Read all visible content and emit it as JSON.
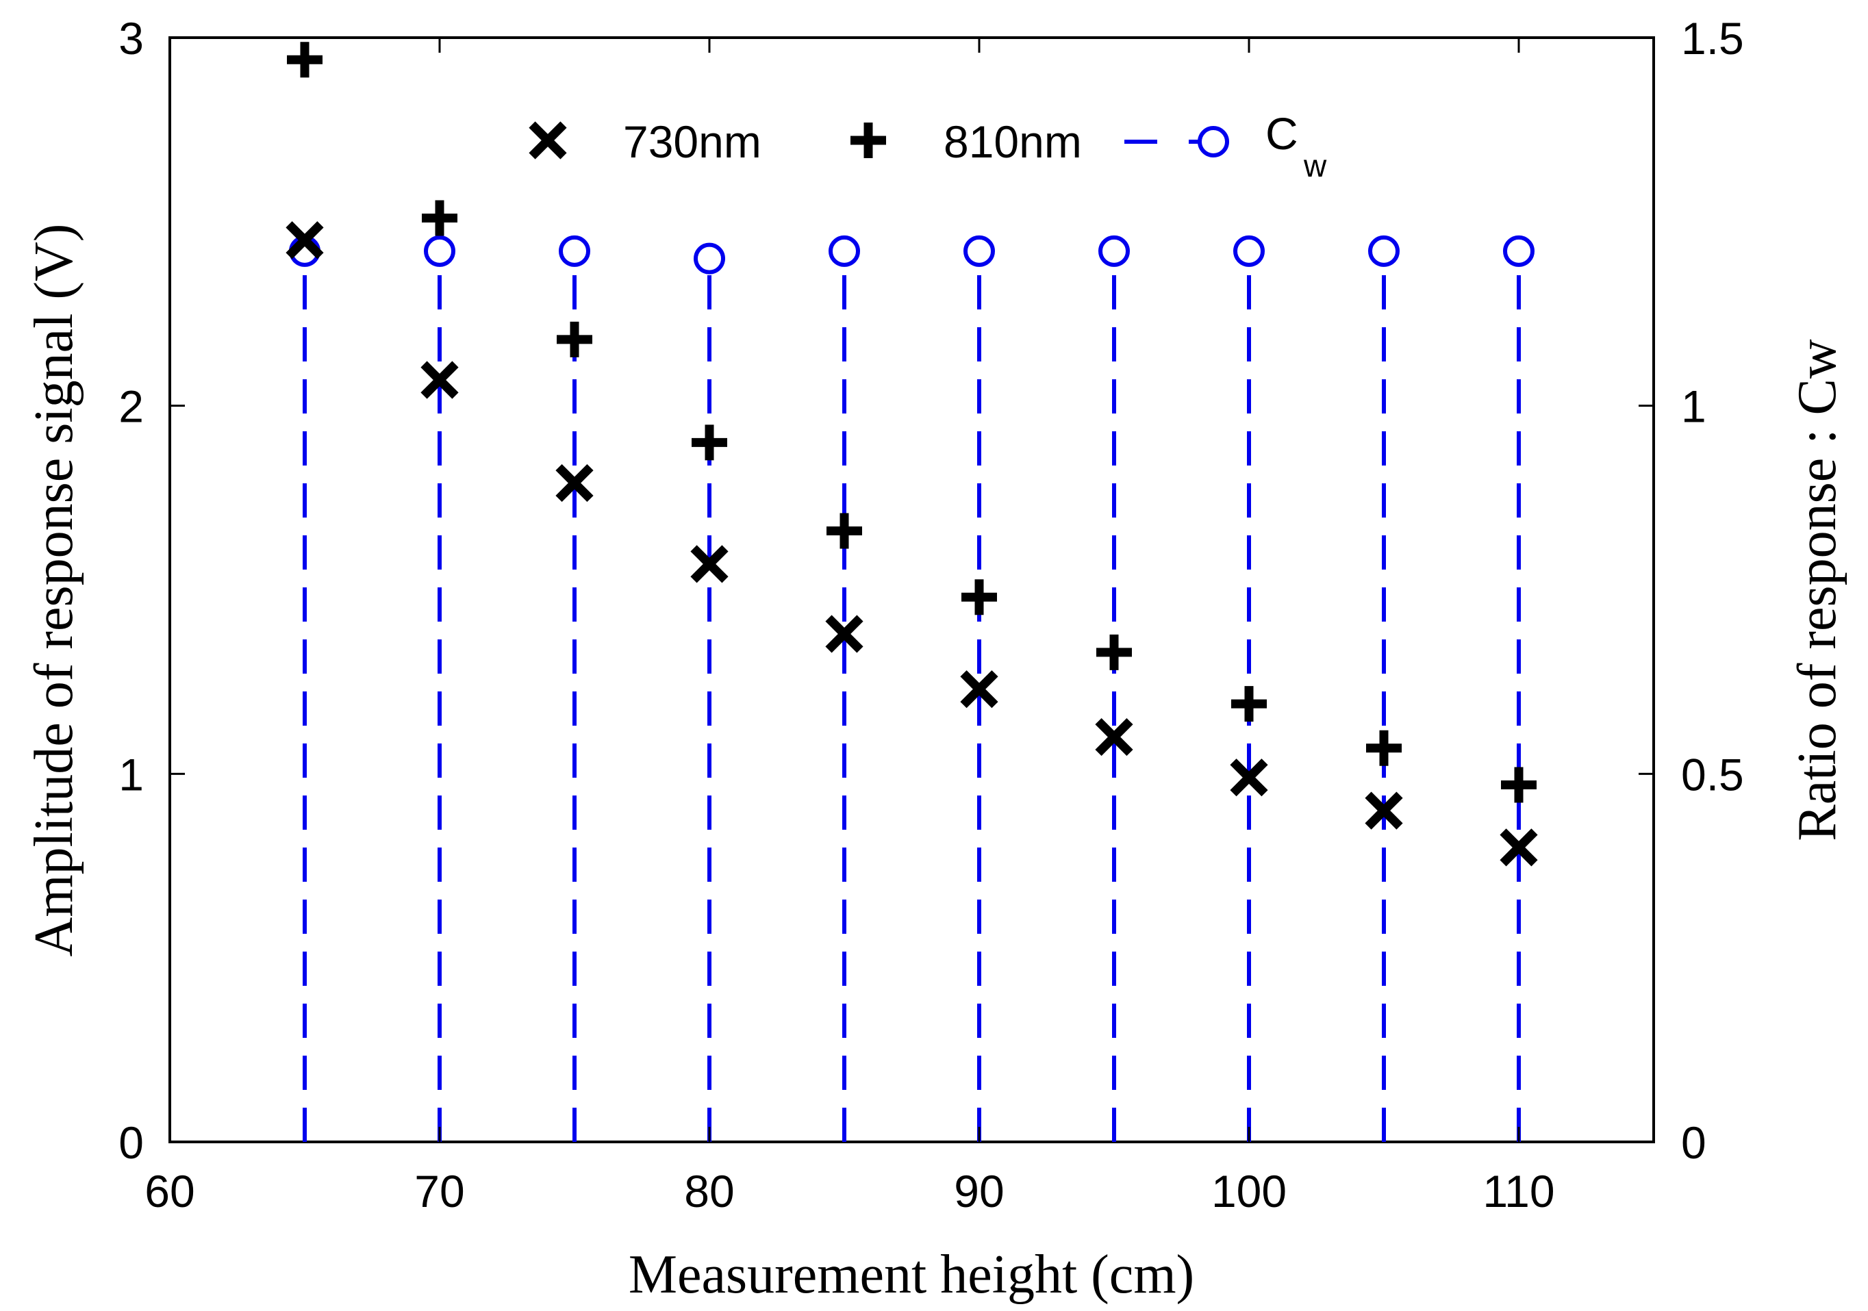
{
  "chart_data": {
    "type": "scatter",
    "xlabel": "Measurement height (cm)",
    "ylabel": "Amplitude of response signal (V)",
    "y2label": "Ratio of response : Cw",
    "xlim": [
      60,
      115
    ],
    "ylim": [
      0,
      3
    ],
    "y2lim": [
      0,
      1.5
    ],
    "xticks": [
      "60",
      "70",
      "80",
      "90",
      "100",
      "110"
    ],
    "yticks": [
      "0",
      "1",
      "2",
      "3"
    ],
    "y2ticks": [
      "0",
      "0.5",
      "1",
      "1.5"
    ],
    "x": [
      65,
      70,
      75,
      80,
      85,
      90,
      95,
      100,
      105,
      110
    ],
    "series": [
      {
        "name": "730nm",
        "axis": "left",
        "marker": "x",
        "color": "#000000",
        "values": [
          2.45,
          2.07,
          1.79,
          1.57,
          1.38,
          1.23,
          1.1,
          0.99,
          0.9,
          0.8
        ]
      },
      {
        "name": "810nm",
        "axis": "left",
        "marker": "plus",
        "color": "#000000",
        "values": [
          2.94,
          2.51,
          2.18,
          1.9,
          1.66,
          1.48,
          1.33,
          1.19,
          1.07,
          0.97
        ]
      },
      {
        "name": "C",
        "name_sub": "w",
        "axis": "right",
        "marker": "circle-stem",
        "line": "dashed",
        "color": "#0000ee",
        "values": [
          1.21,
          1.21,
          1.21,
          1.2,
          1.21,
          1.21,
          1.21,
          1.21,
          1.21,
          1.21
        ]
      }
    ],
    "legend": [
      "730nm",
      "810nm",
      "C_w"
    ],
    "legend_position": "top-center",
    "grid": false
  }
}
